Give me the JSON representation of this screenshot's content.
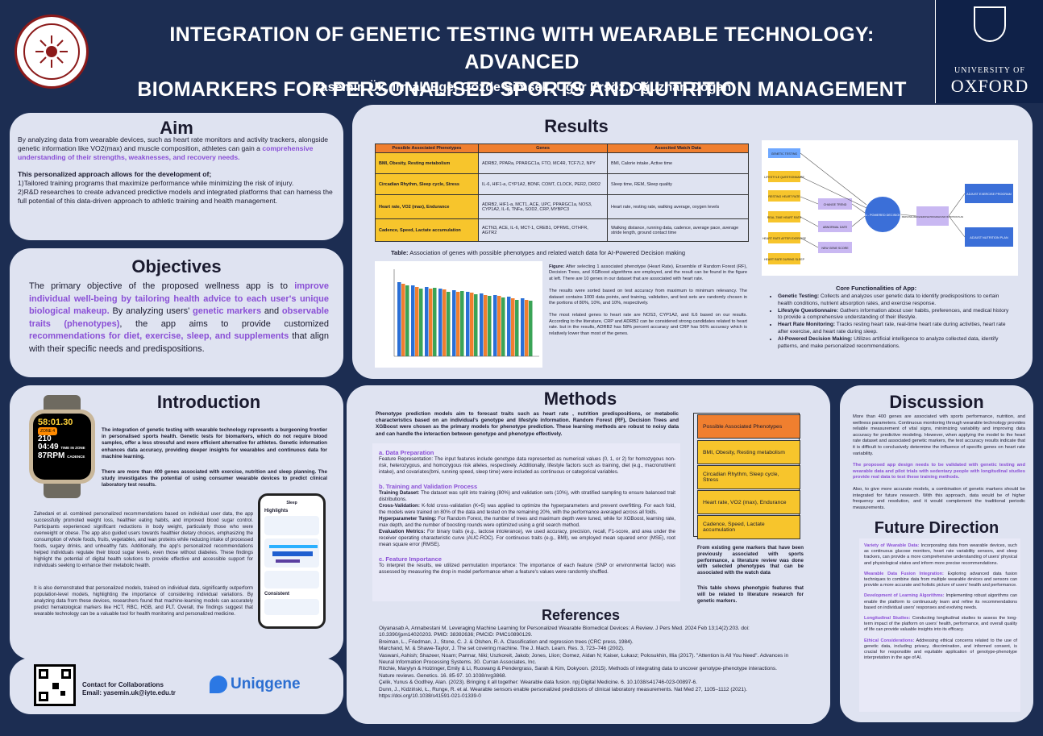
{
  "header": {
    "title_line1": "INTEGRATION OF GENETIC TESTING WITH WEARABLE TECHNOLOGY: ADVANCED",
    "title_line2": "BIOMARKERS FOR PERSONALISED SPORTS AND NUTRITION MANAGEMENT",
    "authors": "Yasemin Ük, Irmak Ege, Gözde Şimşek, Uğur Ersöz, Oğuzhan Doğan",
    "left_logo_text": "İZMİR INSTITUTE OF TECHNOLOGY",
    "left_logo_year": "1992",
    "oxford_line1": "UNIVERSITY OF",
    "oxford_line2": "OXFORD"
  },
  "aim": {
    "heading": "Aim",
    "p1": "By analyzing data from wearable devices, such as heart rate monitors and activity trackers, alongside genetic information like VO2(max) and muscle composition, athletes can gain a",
    "p1_hl": "comprehensive understanding of their strengths, weaknesses, and recovery needs.",
    "p2_bold": "This personalized approach allows for the development of;",
    "p2_l1": "1)Tailored training programs that maximize performance while minimizing the risk of injury.",
    "p2_l2": "2)R&D researches to create advanced predictive models and integrated platforms that can harness the full potential of this data-driven approach to athletic training and health management."
  },
  "objectives": {
    "heading": "Objectives",
    "t1": "The primary objective of the proposed wellness app is to",
    "h1": "improve individual well-being by tailoring health advice to each user's unique biological makeup.",
    "t2": "By analyzing users'",
    "h2": "genetic markers",
    "t3": "and",
    "h3": "observable traits (phenotypes)",
    "t4": ", the app aims to provide customized",
    "h4": "recommendations for diet, exercise, sleep, and supplements",
    "t5": "that align with their specific needs and predispositions."
  },
  "introduction": {
    "heading": "Introduction",
    "watch": {
      "time": "58:01.30",
      "zone": "ZONE 4",
      "bpm": "210",
      "time_label": "TIME IN ZONE",
      "time_in_zone": "04:49",
      "cadence": "87RPM",
      "cadence_label": "CADENCE"
    },
    "p1": "The integration of genetic testing with wearable technology represents a burgeoning frontier in personalised sports health. Genetic tests for biomarkers, which do not require blood samples, offer a less stressful and more efficient alternative for athletes. Genetic information enhances data accuracy, providing deeper insights for wearables and continuous data for machine learning.",
    "p2": "There are more than 400 genes associated with exercise, nutrition and sleep planning. The study investigates the potential of using consumer wearable devices to predict clinical laboratory test results.",
    "p3": "Zahedani et al. combined personalized recommendations based on individual user data, the app successfully promoted weight loss, healthier eating habits, and improved blood sugar control. Participants experienced significant reductions in body weight, particularly those who were overweight or obese. The app also guided users towards healthier dietary choices, emphasizing the consumption of whole foods, fruits, vegetables, and lean proteins while reducing intake of processed foods, sugary drinks, and unhealthy fats. Additionally, the app's personalized recommendations helped individuals regulate their blood sugar levels, even those without diabetes. These findings highlight the potential of digital health solutions to provide effective and accessible support for individuals seeking to enhance their metabolic health.",
    "p4": "It is also demonstrated that personalized models, trained on individual data, significantly outperform population-level models, highlighting the importance of considering individual variations. By analyzing data from these devices, researchers found that machine-learning models can accurately predict hematological markers like HCT, RBC, HGB, and PLT. Overall, the findings suggest that wearable technology can be a valuable tool for health monitoring and personalized medicine.",
    "phone": {
      "top": "Sleep",
      "highlights": "Highlights",
      "consistent": "Consistent"
    }
  },
  "contact": {
    "label": "Contact for Collaborations",
    "email": "Email: yasemin.uk@iyte.edu.tr",
    "brand": "Uniqgene"
  },
  "results": {
    "heading": "Results",
    "table": {
      "headers": [
        "Possible Associated Phenotypes",
        "Genes",
        "Associted Watch Data"
      ],
      "rows": [
        [
          "BMI, Obesity, Resting metabolism",
          "ADRB2, PPARa, PPARGC1a, FTO, MC4R, TCF7L2, NPY",
          "BMI, Calorie intake, Active time"
        ],
        [
          "Circadian Rhythm, Sleep cycle, Stress",
          "IL-6, HIF1-a, CYP1A2, BDNF, COMT, CLOCK, PER2, DRD2",
          "Sleep time, REM, Sleep quality"
        ],
        [
          "Heart rate, VO2 (max), Endurance",
          "ADRB2, HIF1-a, MCT1, ACE, UPC, PPARGC1a, NOS3, CYP1A2, IL-6, TNFa, SOD2, CRP, MYBPC3",
          "Heart rate, resting rate, walking average, oxygen levels"
        ],
        [
          "Cadence, Speed, Lactate accumulation",
          "ACTN3, ACE, IL-6, MCT-1, CREB1, OPRM1, OTHFR, AGTR2",
          "Walking distance, running data, cadence, average pace, average stride length, ground contact time"
        ]
      ]
    },
    "table_caption_bold": "Table:",
    "table_caption": "Association of genes with possible phenotypes and related watch data for AI-Powered Decision making",
    "figure_label": "Figure:",
    "figure_text": "After selecting 1 associated phenotype (Heart Rate), Ensemble of Random Forest (RF), Decision Trees, and XGBoost algorithms are employed, and the result can be found in the figure at left. There are 10 genes in our dataset that are associated with heart rate.",
    "figure_text2": "The results were sorted based on test accuracy from maximum to minimum relevancy. The dataset contains 1000 data points, and training, validation, and test sets are randomly chosen in the portions of 80%, 10%, and 10%, respectively.",
    "figure_text3": "The most related genes to heart rate are NOS3, CYP1A2, and IL6 based on our results. According to the literature, CRP and ADRB2 can be considered strong candidates related to heart rate. but in the results, ADRB2 has 58% percent accuracy and CRP has 56% accuracy which is relatively lower than most of the genes.",
    "flow": {
      "inputs": [
        "GENETIC TESTING",
        "LIFESTYLE QUESTIONNAIRE",
        "RESTING HEART RATE",
        "REAL-TIME HEART RATE",
        "HEART RATE AFTER EXERCISE",
        "HEART RATE DURING SLEEP"
      ],
      "mid": [
        "CHANGE TREND",
        "ABNORMAL DATE",
        "NEW GENE SCORE"
      ],
      "center": "AI - POWERED DECISION",
      "plan": "PERSONALIZED EXERCISE PROGRAM AND NUTRITION PLAN",
      "outputs": [
        "ADJUST EXERCISE PROGRAM",
        "ADJUST NUTRITION PLAN"
      ]
    },
    "core_heading": "Core Functionalities of App:",
    "core": [
      {
        "b": "Genetic Testing:",
        "t": "Collects and analyzes user genetic data to identify predispositions to certain health conditions, nutrient absorption rates, and exercise response."
      },
      {
        "b": "Lifestyle Questionnaire:",
        "t": "Gathers information about user habits, preferences, and medical history to provide a comprehensive understanding of their lifestyle."
      },
      {
        "b": "Heart Rate Monitoring:",
        "t": "Tracks resting heart rate, real-time heart rate during activities, heart rate after exercise, and heart rate during sleep."
      },
      {
        "b": "AI-Powered Decision Making:",
        "t": "Utilizes artificial intelligence to analyze collected data, identify patterns, and make personalized recommendations."
      }
    ]
  },
  "methods": {
    "heading": "Methods",
    "intro": "Phenotype prediction models aim to forecast traits such as heart rate , nutrition predispositions, or metabolic characteristics based on an individual's genotype and lifestyle information. Random Forest (RF), Decision Trees and XGBoost were chosen as the primary models for phenotype prediction. These learning methods are robust to noisy data and can handle the interaction between genotype and phenotype effectively.",
    "a_head": "a. Data Preparation",
    "a_text": "Feature Representation: The input features include genotype data represented as numerical values (0, 1, or 2) for homozygous non-risk, heterozygous, and homozygous risk alleles, respectively. Additionally, lifestyle factors such as training, diet (e.g., macronutrient intake), and covariates(bmi, running speed, sleep time) were included as continuous or categorical variables.",
    "b_head": "b. Training and Validation Process",
    "b_td": "Training Dataset:",
    "b_td_t": "The dataset was split into training (80%) and validation sets (10%), with stratified sampling to ensure balanced trait distributions.",
    "b_cv": "Cross-Validation:",
    "b_cv_t": "K-fold cross-validation (K=5) was applied to optimize the hyperparameters and prevent overfitting. For each fold, the models were trained on 80% of the data and tested on the remaining 20%, with the performance averaged across all folds.",
    "b_hp": "Hyperparameter Tuning:",
    "b_hp_t": "For Random Forest, the number of trees and maximum depth were tuned, while for XGBoost, learning rate, max depth, and the number of boosting rounds were optimized using a grid search method.",
    "b_em": "Evaluation Metrics:",
    "b_em_t": "For binary traits (e.g., lactose intolerance), we used accuracy, precision, recall, F1-score, and area under the receiver operating characteristic curve (AUC-ROC). For continuous traits (e.g., BMI), we employed mean squared error (MSE), root mean square error (RMSE).",
    "c_head": "c. Feature Importance",
    "c_text": "To interpret the results, we utilized permutation importance: The importance of each feature (SNP or environmental factor) was assessed by measuring the drop in model performance when a feature's values were randomly shuffled.",
    "side_cells": [
      "Possible Associated Phenotypes",
      "BMI, Obesity, Resting metabolism",
      "Circadian Rhythm, Sleep cycle, Stress",
      "Heart rate, VO2 (max), Endurance",
      "Cadence, Speed, Lactate accumulation"
    ],
    "side_note1": "From existing gene markers that have been previously associated with sports performance, a literature review was done with selected phenotypes that can be associated with the watch data",
    "side_note2": "This table shows phenotypic features that will be related to literature research for genetic markers."
  },
  "references": {
    "heading": "References",
    "items": [
      "Oiyanasab A, Annabestani M. Leveraging Machine Learning for Personalized Wearable Biomedical Devices: A Review. J Pers Med. 2024 Feb 13;14(2):203. doi: 10.3390/jpm14020203. PMID: 38392636; PMCID: PMC10890129.",
      "Breiman, L., Friedman, J., Stone, C. J. & Olshen, R. A. Classification and regression trees (CRC press, 1984).",
      "Marchand, M. & Shawe-Taylor, J. The set covering machine. The J. Mach. Learn. Res. 3, 723–746 (2002).",
      "Vaswani, Ashish; Shazeer, Noam; Parmar, Niki; Uszkoreit, Jakob; Jones, Llion; Gomez, Aidan N; Kaiser, Łukasz; Polosukhin, Illia (2017). \"Attention is All You Need\". Advances in Neural Information Processing Systems. 30. Curran Associates, Inc.",
      "Ritchie, Marylyn & Holzinger, Emily & Li, Ruowang & Pendergrass, Sarah & Kim, Dokyoon. (2015). Methods of integrating data to uncover genotype-phenotype interactions. Nature reviews. Genetics. 16. 85-97. 10.1038/nrg3868.",
      "Çelik, Yunus & Godfrey, Alan. (2023). Bringing it all together: Wearable data fusion. npj Digital Medicine. 6. 10.1038/s41746-023-00897-6.",
      "Dunn, J., Kidziński, Ł., Runge, R. et al. Wearable sensors enable personalized predictions of clinical laboratory measurements. Nat Med 27, 1105–1112 (2021). https://doi.org/10.1038/s41591-021-01339-0"
    ]
  },
  "discussion": {
    "heading": "Discussion",
    "p1": "More than 400 genes are associated with sports performance, nutrition, and wellness parameters. Continuous monitoring through wearable technology provides reliable measurement of vital signs, minimizing variability and improving data accuracy for predictive modeling. However, when applying the model to the heart rate dataset and associated genetic markers, the test accuracy results indicate that it is difficult to conclusively determine the influence of specific genes on heart rate variability.",
    "p2_hl": "The proposed app design needs to be validated with genetic testing and wearable data and pilot trials with sedentary people with longitudinal studies provide real data to test these training methods.",
    "p3": "Also, to give more accurate models, a combination of genetic markers should be integrated for future research. With this approach, data would be of higher frequency and resolution, and it would complement the traditional periodic measurements."
  },
  "future": {
    "heading": "Future Direction",
    "items": [
      {
        "h": "Variety of Wearable Data:",
        "t": "Incorporating data from wearable devices, such as continuous glucose monitors, heart rate variability sensors, and sleep trackers, can provide a more comprehensive understanding of users' physical and physiological states and inform more precise recommendations."
      },
      {
        "h": "Wearable Data Fusion Integration:",
        "t": "Exploring advanced data fusion techniques to combine data from multiple wearable devices and sensors can provide a more accurate and holistic picture of users' health and performance."
      },
      {
        "h": "Development of Learning Algorithms:",
        "t": "Implementing robust algorithms can enable the platform to continuously learn and refine its recommendations based on individual users' responses and evolving needs."
      },
      {
        "h": "Longitudinal Studies:",
        "t": "Conducting longitudinal studies to assess the long-term impact of the platform on users' health, performance, and overall quality of life can provide valuable insights into its efficacy."
      },
      {
        "h": "Ethical Considerations:",
        "t": "Addressing ethical concerns related to the use of genetic data, including privacy, discrimination, and informed consent, is crucial for responsible and equitable application of genotype-phenotype interpretation in the age of AI."
      }
    ]
  },
  "colors": {
    "bg": "#1c2d52",
    "panel": "#dfe3f1",
    "accent": "#8a4fd6",
    "orange": "#f07f2f",
    "yellow": "#f7c52c"
  }
}
